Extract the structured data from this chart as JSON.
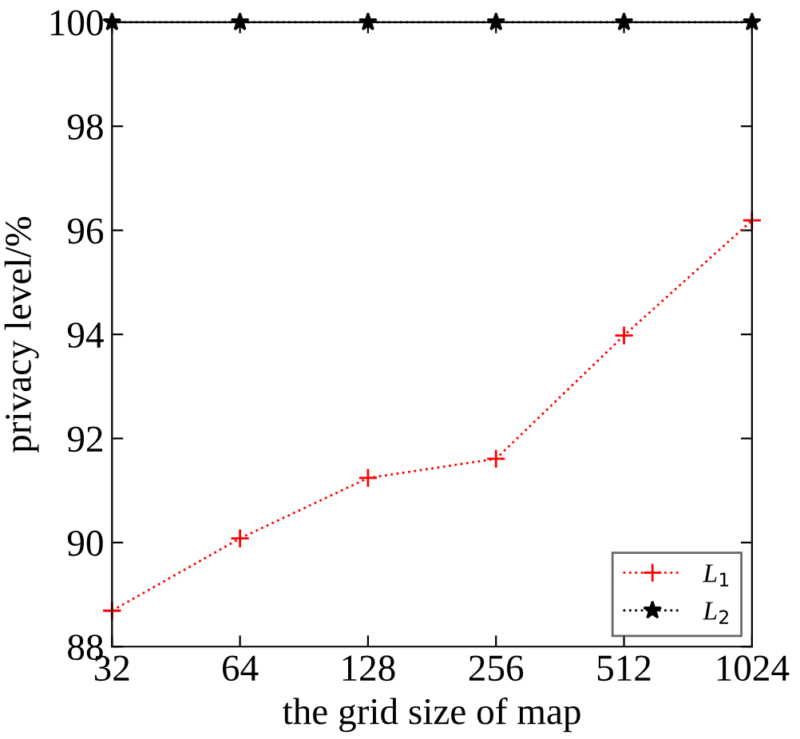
{
  "chart_data": {
    "type": "line",
    "xlabel": "the grid size of map",
    "ylabel": "privacy level/%",
    "categories": [
      "32",
      "64",
      "128",
      "256",
      "512",
      "1024"
    ],
    "series": [
      {
        "name": "L$_{1}$",
        "color": "#ff0000",
        "values": [
          88.69,
          90.08,
          91.24,
          91.61,
          93.98,
          96.19
        ],
        "marker": "cross",
        "line_style": "dotted"
      },
      {
        "name": "L$_{2}$",
        "color": "#000000",
        "values": [
          100,
          100,
          100,
          100,
          100,
          100
        ],
        "marker": "star",
        "line_style": "dotted"
      }
    ],
    "ylim": [
      88,
      100
    ],
    "yticks": [
      88,
      90,
      92,
      94,
      96,
      98,
      100
    ],
    "grid": false,
    "legend": "bottom right"
  }
}
